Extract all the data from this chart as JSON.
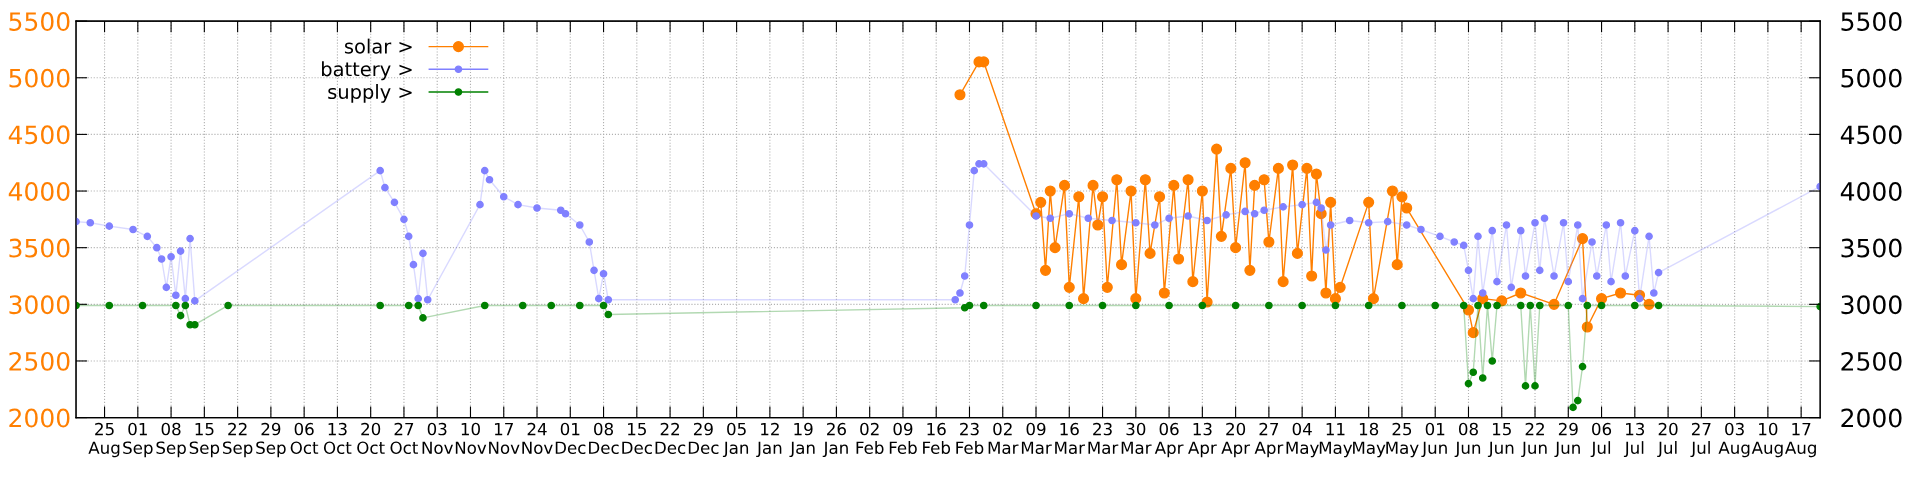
{
  "chart_data": {
    "type": "line",
    "marker": "circle",
    "grid": true,
    "legend": "top left",
    "ylim": [
      2000,
      5500
    ],
    "yticks": [
      2000,
      2500,
      3000,
      3500,
      4000,
      4500,
      5000,
      5500
    ],
    "y2lim": [
      2000,
      5500
    ],
    "y2ticks": [
      2000,
      2500,
      3000,
      3500,
      4000,
      4500,
      5000,
      5500
    ],
    "categories": [
      null,
      null,
      null,
      null,
      null,
      null,
      "25\nAug",
      null,
      null,
      null,
      null,
      null,
      null,
      "01\nSep",
      null,
      null,
      null,
      null,
      null,
      null,
      "08\nSep",
      null,
      null,
      null,
      null,
      null,
      null,
      "15\nSep",
      null,
      null,
      null,
      null,
      null,
      null,
      "22\nSep",
      null,
      null,
      null,
      null,
      null,
      null,
      "29\nSep",
      null,
      null,
      null,
      null,
      null,
      null,
      "06\nOct",
      null,
      null,
      null,
      null,
      null,
      null,
      "13\nOct",
      null,
      null,
      null,
      null,
      null,
      null,
      "20\nOct",
      null,
      null,
      null,
      null,
      null,
      null,
      "27\nOct",
      null,
      null,
      null,
      null,
      null,
      null,
      "03\nNov",
      null,
      null,
      null,
      null,
      null,
      null,
      "10\nNov",
      null,
      null,
      null,
      null,
      null,
      null,
      "17\nNov",
      null,
      null,
      null,
      null,
      null,
      null,
      "24\nNov",
      null,
      null,
      null,
      null,
      null,
      null,
      "01\nDec",
      null,
      null,
      null,
      null,
      null,
      null,
      "08\nDec",
      null,
      null,
      null,
      null,
      null,
      null,
      "15\nDec",
      null,
      null,
      null,
      null,
      null,
      null,
      "22\nDec",
      null,
      null,
      null,
      null,
      null,
      null,
      "29\nDec",
      null,
      null,
      null,
      null,
      null,
      null,
      "05\nJan",
      null,
      null,
      null,
      null,
      null,
      null,
      "12\nJan",
      null,
      null,
      null,
      null,
      null,
      null,
      "19\nJan",
      null,
      null,
      null,
      null,
      null,
      null,
      "26\nJan",
      null,
      null,
      null,
      null,
      null,
      null,
      "02\nFeb",
      null,
      null,
      null,
      null,
      null,
      null,
      "09\nFeb",
      null,
      null,
      null,
      null,
      null,
      null,
      "16\nFeb",
      null,
      null,
      null,
      null,
      null,
      null,
      "23\nFeb",
      null,
      null,
      null,
      null,
      null,
      null,
      "02\nMar",
      null,
      null,
      null,
      null,
      null,
      null,
      "09\nMar",
      null,
      null,
      null,
      null,
      null,
      null,
      "16\nMar",
      null,
      null,
      null,
      null,
      null,
      null,
      "23\nMar",
      null,
      null,
      null,
      null,
      null,
      null,
      "30\nMar",
      null,
      null,
      null,
      null,
      null,
      null,
      "06\nApr",
      null,
      null,
      null,
      null,
      null,
      null,
      "13\nApr",
      null,
      null,
      null,
      null,
      null,
      null,
      "20\nApr",
      null,
      null,
      null,
      null,
      null,
      null,
      "27\nApr",
      null,
      null,
      null,
      null,
      null,
      null,
      "04\nMay",
      null,
      null,
      null,
      null,
      null,
      null,
      "11\nMay",
      null,
      null,
      null,
      null,
      null,
      null,
      "18\nMay",
      null,
      null,
      null,
      null,
      null,
      null,
      "25\nMay",
      null,
      null,
      null,
      null,
      null,
      null,
      "01\nJun",
      null,
      null,
      null,
      null,
      null,
      null,
      "08\nJun",
      null,
      null,
      null,
      null,
      null,
      null,
      "15\nJun",
      null,
      null,
      null,
      null,
      null,
      null,
      "22\nJun",
      null,
      null,
      null,
      null,
      null,
      null,
      "29\nJun",
      null,
      null,
      null,
      null,
      null,
      null,
      "06\nJul",
      null,
      null,
      null,
      null,
      null,
      null,
      "13\nJul",
      null,
      null,
      null,
      null,
      null,
      null,
      "20\nJul",
      null,
      null,
      null,
      null,
      null,
      null,
      "27\nJul",
      null,
      null,
      null,
      null,
      null,
      null,
      "03\nAug",
      null,
      null,
      null,
      null,
      null,
      null,
      "10\nAug",
      null,
      null,
      null,
      null,
      null,
      null,
      "17\nAug",
      null,
      null,
      null,
      null
    ],
    "series": [
      {
        "name": "solar >",
        "color": "#ff7f00",
        "values": [
          null,
          null,
          null,
          null,
          null,
          null,
          null,
          null,
          null,
          null,
          null,
          null,
          null,
          null,
          null,
          null,
          null,
          null,
          null,
          null,
          null,
          null,
          null,
          null,
          null,
          null,
          null,
          null,
          null,
          null,
          null,
          null,
          null,
          null,
          null,
          null,
          null,
          null,
          null,
          null,
          null,
          null,
          null,
          null,
          null,
          null,
          null,
          null,
          null,
          null,
          null,
          null,
          null,
          null,
          null,
          null,
          null,
          null,
          null,
          null,
          null,
          null,
          null,
          null,
          null,
          null,
          null,
          null,
          null,
          null,
          null,
          null,
          null,
          null,
          null,
          null,
          null,
          null,
          null,
          null,
          null,
          null,
          null,
          null,
          null,
          null,
          null,
          null,
          null,
          null,
          null,
          null,
          null,
          null,
          null,
          null,
          null,
          null,
          null,
          null,
          null,
          null,
          null,
          null,
          null,
          null,
          null,
          null,
          null,
          null,
          null,
          null,
          null,
          null,
          null,
          null,
          null,
          null,
          null,
          null,
          null,
          null,
          null,
          null,
          null,
          null,
          null,
          null,
          null,
          null,
          null,
          null,
          null,
          null,
          null,
          null,
          null,
          null,
          null,
          null,
          null,
          null,
          null,
          null,
          null,
          null,
          null,
          null,
          null,
          null,
          null,
          null,
          null,
          null,
          null,
          null,
          null,
          null,
          null,
          null,
          null,
          null,
          null,
          null,
          null,
          null,
          null,
          null,
          null,
          null,
          null,
          null,
          null,
          null,
          null,
          null,
          null,
          null,
          null,
          null,
          null,
          null,
          null,
          null,
          null,
          null,
          4850,
          null,
          null,
          null,
          5140,
          5140,
          null,
          null,
          null,
          null,
          null,
          null,
          null,
          null,
          null,
          null,
          3800,
          3900,
          3300,
          4000,
          3500,
          null,
          4050,
          3150,
          null,
          3950,
          3050,
          null,
          4050,
          3700,
          3950,
          3150,
          null,
          4100,
          3350,
          null,
          4000,
          3050,
          null,
          4100,
          3450,
          null,
          3950,
          3100,
          null,
          4050,
          3400,
          null,
          4100,
          3200,
          null,
          4000,
          3020,
          null,
          4370,
          3600,
          null,
          4200,
          3500,
          null,
          4250,
          3300,
          4050,
          null,
          4100,
          3550,
          null,
          4200,
          3200,
          null,
          4230,
          3450,
          null,
          4200,
          3250,
          4150,
          3800,
          3100,
          3900,
          3050,
          3150,
          null,
          null,
          null,
          null,
          null,
          3900,
          3050,
          null,
          null,
          null,
          4000,
          3350,
          3950,
          3850,
          null,
          null,
          null,
          null,
          null,
          null,
          null,
          null,
          null,
          null,
          null,
          null,
          2950,
          2750,
          null,
          3050,
          null,
          null,
          null,
          3030,
          null,
          null,
          null,
          3100,
          null,
          null,
          null,
          null,
          null,
          null,
          3000,
          null,
          null,
          null,
          null,
          null,
          3580,
          2800,
          null,
          null,
          3050,
          null,
          null,
          null,
          3100,
          null,
          null,
          null,
          3080,
          null,
          3000,
          null,
          null,
          null,
          null,
          null,
          null,
          null,
          null,
          null,
          null,
          null,
          null,
          null,
          null,
          null,
          null,
          null,
          null,
          null,
          null,
          null,
          null,
          null,
          null,
          null,
          null,
          null,
          null,
          null,
          null,
          null,
          null,
          null,
          null,
          null,
          null
        ]
      },
      {
        "name": "battery >",
        "color": "#8080ff",
        "values": [
          3730,
          null,
          null,
          3720,
          null,
          null,
          null,
          3690,
          null,
          null,
          null,
          null,
          3660,
          null,
          null,
          3600,
          null,
          3500,
          3400,
          3150,
          3420,
          3080,
          3470,
          3050,
          3580,
          3030,
          null,
          null,
          null,
          null,
          null,
          null,
          null,
          null,
          null,
          null,
          null,
          null,
          null,
          null,
          null,
          null,
          null,
          null,
          null,
          null,
          null,
          null,
          null,
          null,
          null,
          null,
          null,
          null,
          null,
          null,
          null,
          null,
          null,
          null,
          null,
          null,
          null,
          null,
          4180,
          4030,
          null,
          3900,
          null,
          3750,
          3600,
          3350,
          3050,
          3450,
          3040,
          null,
          null,
          null,
          null,
          null,
          null,
          null,
          null,
          null,
          null,
          3880,
          4180,
          4100,
          null,
          null,
          3950,
          null,
          null,
          3880,
          null,
          null,
          null,
          3850,
          null,
          null,
          null,
          null,
          3830,
          3800,
          null,
          null,
          3700,
          null,
          3550,
          3300,
          3050,
          3270,
          3040,
          null,
          null,
          null,
          null,
          null,
          null,
          null,
          null,
          null,
          null,
          null,
          null,
          null,
          null,
          null,
          null,
          null,
          null,
          null,
          null,
          null,
          null,
          null,
          null,
          null,
          null,
          null,
          null,
          null,
          null,
          null,
          null,
          null,
          null,
          null,
          null,
          null,
          null,
          null,
          null,
          null,
          null,
          null,
          null,
          null,
          null,
          null,
          null,
          null,
          null,
          null,
          null,
          null,
          null,
          null,
          null,
          null,
          null,
          null,
          null,
          null,
          null,
          null,
          null,
          null,
          null,
          null,
          null,
          null,
          null,
          null,
          null,
          3040,
          3100,
          3250,
          3700,
          4180,
          4240,
          4240,
          null,
          null,
          null,
          null,
          null,
          null,
          null,
          null,
          null,
          null,
          3780,
          null,
          null,
          3760,
          null,
          null,
          null,
          3800,
          null,
          null,
          null,
          3760,
          null,
          null,
          null,
          null,
          3740,
          null,
          null,
          null,
          null,
          3720,
          null,
          null,
          null,
          3700,
          null,
          null,
          3760,
          null,
          null,
          null,
          3780,
          null,
          null,
          null,
          3740,
          null,
          null,
          null,
          3790,
          null,
          null,
          null,
          3820,
          null,
          3800,
          null,
          3830,
          null,
          null,
          null,
          3860,
          null,
          null,
          null,
          3880,
          null,
          null,
          3900,
          3850,
          3480,
          3700,
          null,
          null,
          null,
          3740,
          null,
          null,
          null,
          3720,
          null,
          null,
          null,
          3730,
          null,
          null,
          null,
          3700,
          null,
          null,
          3660,
          null,
          null,
          null,
          3600,
          null,
          null,
          3550,
          null,
          3520,
          3300,
          3050,
          3600,
          3100,
          null,
          3650,
          3200,
          null,
          3700,
          3150,
          null,
          3650,
          3250,
          null,
          3720,
          3300,
          3760,
          null,
          3250,
          null,
          3720,
          3200,
          null,
          3700,
          3050,
          null,
          3550,
          3250,
          null,
          3700,
          3200,
          null,
          3720,
          3250,
          null,
          3650,
          3050,
          null,
          3600,
          3100,
          3280,
          null,
          null,
          null,
          null,
          null,
          null,
          null,
          null,
          null,
          null,
          null,
          null,
          null,
          null,
          null,
          null,
          null,
          null,
          null,
          null,
          null,
          null,
          null,
          null,
          null,
          null,
          null,
          null,
          null,
          null,
          null,
          null,
          null,
          4040
        ]
      },
      {
        "name": "supply >",
        "color": "#008000",
        "values": [
          2990,
          null,
          null,
          null,
          null,
          null,
          null,
          2990,
          null,
          null,
          null,
          null,
          null,
          null,
          2990,
          null,
          null,
          null,
          null,
          null,
          null,
          2990,
          2900,
          2990,
          2820,
          2820,
          null,
          null,
          null,
          null,
          null,
          null,
          2990,
          null,
          null,
          null,
          null,
          null,
          null,
          null,
          null,
          null,
          null,
          null,
          null,
          null,
          null,
          null,
          null,
          null,
          null,
          null,
          null,
          null,
          null,
          null,
          null,
          null,
          null,
          null,
          null,
          null,
          null,
          null,
          2990,
          null,
          null,
          null,
          null,
          null,
          2990,
          null,
          2990,
          2880,
          null,
          null,
          null,
          null,
          null,
          null,
          null,
          null,
          null,
          null,
          null,
          null,
          2990,
          null,
          null,
          null,
          null,
          null,
          null,
          null,
          2990,
          null,
          null,
          null,
          null,
          null,
          2990,
          null,
          null,
          null,
          null,
          null,
          2990,
          null,
          null,
          null,
          null,
          2990,
          2910,
          null,
          null,
          null,
          null,
          null,
          null,
          null,
          null,
          null,
          null,
          null,
          null,
          null,
          null,
          null,
          null,
          null,
          null,
          null,
          null,
          null,
          null,
          null,
          null,
          null,
          null,
          null,
          null,
          null,
          null,
          null,
          null,
          null,
          null,
          null,
          null,
          null,
          null,
          null,
          null,
          null,
          null,
          null,
          null,
          null,
          null,
          null,
          null,
          null,
          null,
          null,
          null,
          null,
          null,
          null,
          null,
          null,
          null,
          null,
          null,
          null,
          null,
          null,
          null,
          null,
          null,
          null,
          null,
          null,
          null,
          null,
          null,
          null,
          null,
          2970,
          2990,
          null,
          null,
          2990,
          null,
          null,
          null,
          null,
          null,
          null,
          null,
          null,
          null,
          null,
          2990,
          null,
          null,
          null,
          null,
          null,
          null,
          2990,
          null,
          null,
          null,
          null,
          null,
          null,
          2990,
          null,
          null,
          null,
          null,
          null,
          null,
          2990,
          null,
          null,
          null,
          null,
          null,
          null,
          2990,
          null,
          null,
          null,
          null,
          null,
          null,
          2990,
          null,
          null,
          null,
          null,
          null,
          null,
          2990,
          null,
          null,
          null,
          null,
          null,
          null,
          2990,
          null,
          null,
          null,
          null,
          null,
          null,
          2990,
          null,
          null,
          null,
          null,
          null,
          null,
          2990,
          null,
          null,
          null,
          null,
          null,
          null,
          2990,
          null,
          null,
          null,
          null,
          null,
          null,
          2990,
          null,
          null,
          null,
          null,
          null,
          null,
          2990,
          null,
          null,
          null,
          null,
          null,
          2990,
          2300,
          2400,
          2990,
          2350,
          2990,
          2500,
          2990,
          null,
          null,
          null,
          null,
          2990,
          2280,
          2990,
          2280,
          2990,
          null,
          null,
          null,
          null,
          null,
          2990,
          2090,
          2150,
          2450,
          2990,
          null,
          null,
          2990,
          null,
          null,
          null,
          null,
          null,
          null,
          2990,
          null,
          null,
          null,
          null,
          2990,
          null,
          null,
          null,
          null,
          null,
          null,
          null,
          null,
          null,
          null,
          null,
          null,
          null,
          null,
          null,
          null,
          null,
          null,
          null,
          null,
          null,
          null,
          null,
          null,
          null,
          null,
          null,
          null,
          null,
          null,
          null,
          null,
          null,
          2980
        ]
      }
    ]
  }
}
